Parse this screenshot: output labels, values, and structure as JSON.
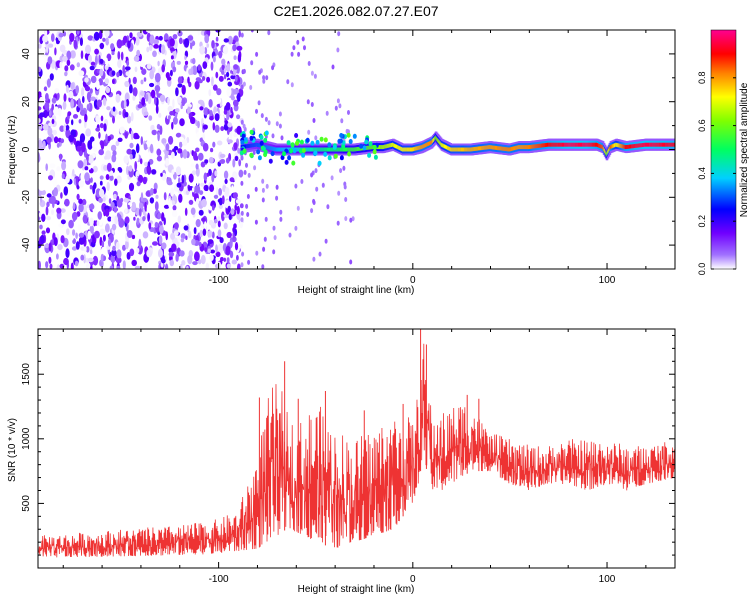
{
  "title": "C2E1.2026.082.07.27.E07",
  "chart_data": [
    {
      "type": "heatmap",
      "xlabel": "Height of straight line (km)",
      "ylabel": "Frequency (Hz)",
      "xlim": [
        -193,
        135
      ],
      "ylim": [
        -50,
        50
      ],
      "xticks": [
        -100,
        0,
        100
      ],
      "xtick_labels": [
        "-100",
        "0",
        "100"
      ],
      "yticks": [
        -40,
        -20,
        0,
        20,
        40
      ],
      "ytick_labels": [
        "-40",
        "-20",
        "0",
        "20",
        "40"
      ],
      "colorbar": {
        "label": "Normalized spectral amplitude",
        "range": [
          0,
          1
        ],
        "ticks": [
          0.0,
          0.2,
          0.4,
          0.6,
          0.8
        ],
        "tick_labels": [
          "0.0",
          "0.2",
          "0.4",
          "0.6",
          "0.8"
        ],
        "colormap": "rainbow (white-violet-blue-cyan-green-yellow-red-magenta)"
      },
      "noise_region_x": [
        -193,
        -88
      ],
      "ridge": {
        "description": "narrow-band echo near 0 Hz",
        "x": [
          -88,
          -80,
          -70,
          -60,
          -50,
          -40,
          -30,
          -20,
          -15,
          -10,
          -5,
          0,
          5,
          10,
          12,
          15,
          20,
          30,
          40,
          50,
          55,
          60,
          70,
          80,
          90,
          95,
          98,
          100,
          102,
          105,
          110,
          120,
          135
        ],
        "freq": [
          1,
          2,
          0,
          0,
          0,
          0,
          0,
          1,
          1,
          2,
          0,
          0,
          1,
          3,
          5,
          2,
          0,
          0,
          1,
          0,
          1,
          1,
          2,
          2,
          2,
          2,
          1,
          -2,
          1,
          2,
          1,
          2,
          2
        ],
        "amplitude": [
          0.25,
          0.3,
          0.35,
          0.4,
          0.45,
          0.5,
          0.55,
          0.6,
          0.65,
          0.7,
          0.72,
          0.75,
          0.8,
          0.82,
          0.6,
          0.7,
          0.75,
          0.78,
          0.8,
          0.82,
          0.8,
          0.82,
          0.9,
          0.95,
          0.95,
          0.9,
          0.85,
          0.6,
          0.85,
          0.7,
          0.9,
          0.95,
          0.92
        ]
      }
    },
    {
      "type": "line",
      "xlabel": "Height of straight line (km)",
      "ylabel": "SNR (10 * v/v)",
      "xlim": [
        -193,
        135
      ],
      "ylim": [
        0,
        1850
      ],
      "xticks": [
        -100,
        0,
        100
      ],
      "xtick_labels": [
        "-100",
        "0",
        "100"
      ],
      "yticks": [
        500,
        1000,
        1500
      ],
      "ytick_labels": [
        "500",
        "1000",
        "1500"
      ],
      "color": "#ee3333",
      "envelope": {
        "x": [
          -193,
          -150,
          -120,
          -100,
          -90,
          -80,
          -75,
          -70,
          -65,
          -60,
          -50,
          -40,
          -30,
          -20,
          -10,
          -5,
          0,
          3,
          5,
          8,
          10,
          15,
          20,
          25,
          30,
          35,
          40,
          50,
          60,
          70,
          80,
          90,
          100,
          110,
          120,
          135
        ],
        "low": [
          80,
          90,
          100,
          110,
          130,
          150,
          200,
          250,
          300,
          280,
          200,
          150,
          200,
          250,
          300,
          400,
          500,
          600,
          900,
          700,
          600,
          600,
          650,
          700,
          750,
          750,
          750,
          650,
          600,
          650,
          650,
          600,
          650,
          600,
          650,
          700
        ],
        "high": [
          250,
          300,
          330,
          380,
          450,
          900,
          1300,
          1500,
          1250,
          1100,
          1300,
          1100,
          1000,
          1100,
          1200,
          1200,
          1150,
          1400,
          1850,
          1400,
          1200,
          1200,
          1250,
          1300,
          1300,
          1150,
          1050,
          1000,
          950,
          950,
          1000,
          1000,
          1000,
          950,
          950,
          1000
        ]
      },
      "peaks": [
        {
          "x": -79,
          "y": 1320
        },
        {
          "x": -66,
          "y": 1600
        },
        {
          "x": -59,
          "y": 1310
        },
        {
          "x": -45,
          "y": 1370
        },
        {
          "x": -25,
          "y": 1220
        },
        {
          "x": -5,
          "y": 1270
        },
        {
          "x": 4,
          "y": 1860
        },
        {
          "x": 7,
          "y": 1730
        },
        {
          "x": 28,
          "y": 1340
        },
        {
          "x": 34,
          "y": 1310
        }
      ]
    }
  ]
}
